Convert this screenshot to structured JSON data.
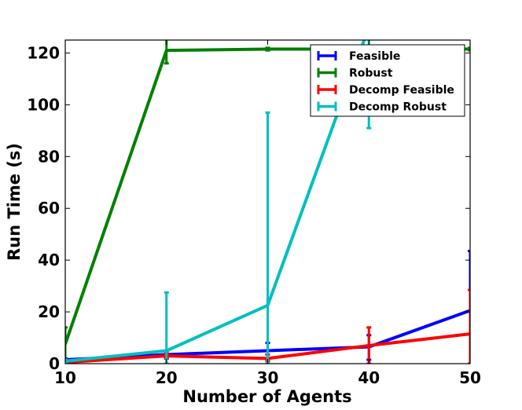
{
  "chart_data": {
    "type": "line",
    "title": "",
    "xlabel": "Number of Agents",
    "ylabel": "Run Time (s)",
    "x": [
      10,
      20,
      30,
      40,
      50
    ],
    "xlim": [
      10,
      50
    ],
    "ylim": [
      0,
      125
    ],
    "xticks": [
      10,
      20,
      30,
      40,
      50
    ],
    "yticks": [
      0,
      20,
      40,
      60,
      80,
      100,
      120
    ],
    "grid": false,
    "legend_position": "top-right",
    "series": [
      {
        "name": "Feasible",
        "color": "#0000ff",
        "values": [
          1.5,
          3.5,
          5.0,
          6.5,
          20.5
        ],
        "err_low": [
          0.5,
          2.0,
          3.5,
          1.5,
          0.0
        ],
        "err_high": [
          2.0,
          5.0,
          8.0,
          11.0,
          43.5
        ]
      },
      {
        "name": "Robust",
        "color": "#008000",
        "values": [
          7.5,
          121.0,
          121.5,
          121.5,
          121.5
        ],
        "err_low": [
          0.0,
          116.0,
          121.0,
          121.0,
          121.0
        ],
        "err_high": [
          14.0,
          126.0,
          122.0,
          122.0,
          122.0
        ]
      },
      {
        "name": "Decomp Feasible",
        "color": "#ff0000",
        "values": [
          0.5,
          3.0,
          2.0,
          7.0,
          11.5
        ],
        "err_low": [
          0.0,
          2.0,
          1.0,
          0.0,
          0.0
        ],
        "err_high": [
          1.5,
          4.0,
          3.5,
          14.0,
          28.5
        ]
      },
      {
        "name": "Decomp Robust",
        "color": "#00bfbf",
        "values": [
          1.0,
          5.0,
          22.5,
          130.0,
          130.0
        ],
        "err_low": [
          0.5,
          0.0,
          0.0,
          91.0,
          130.0
        ],
        "err_high": [
          1.5,
          27.5,
          97.0,
          130.0,
          130.0
        ]
      }
    ]
  }
}
